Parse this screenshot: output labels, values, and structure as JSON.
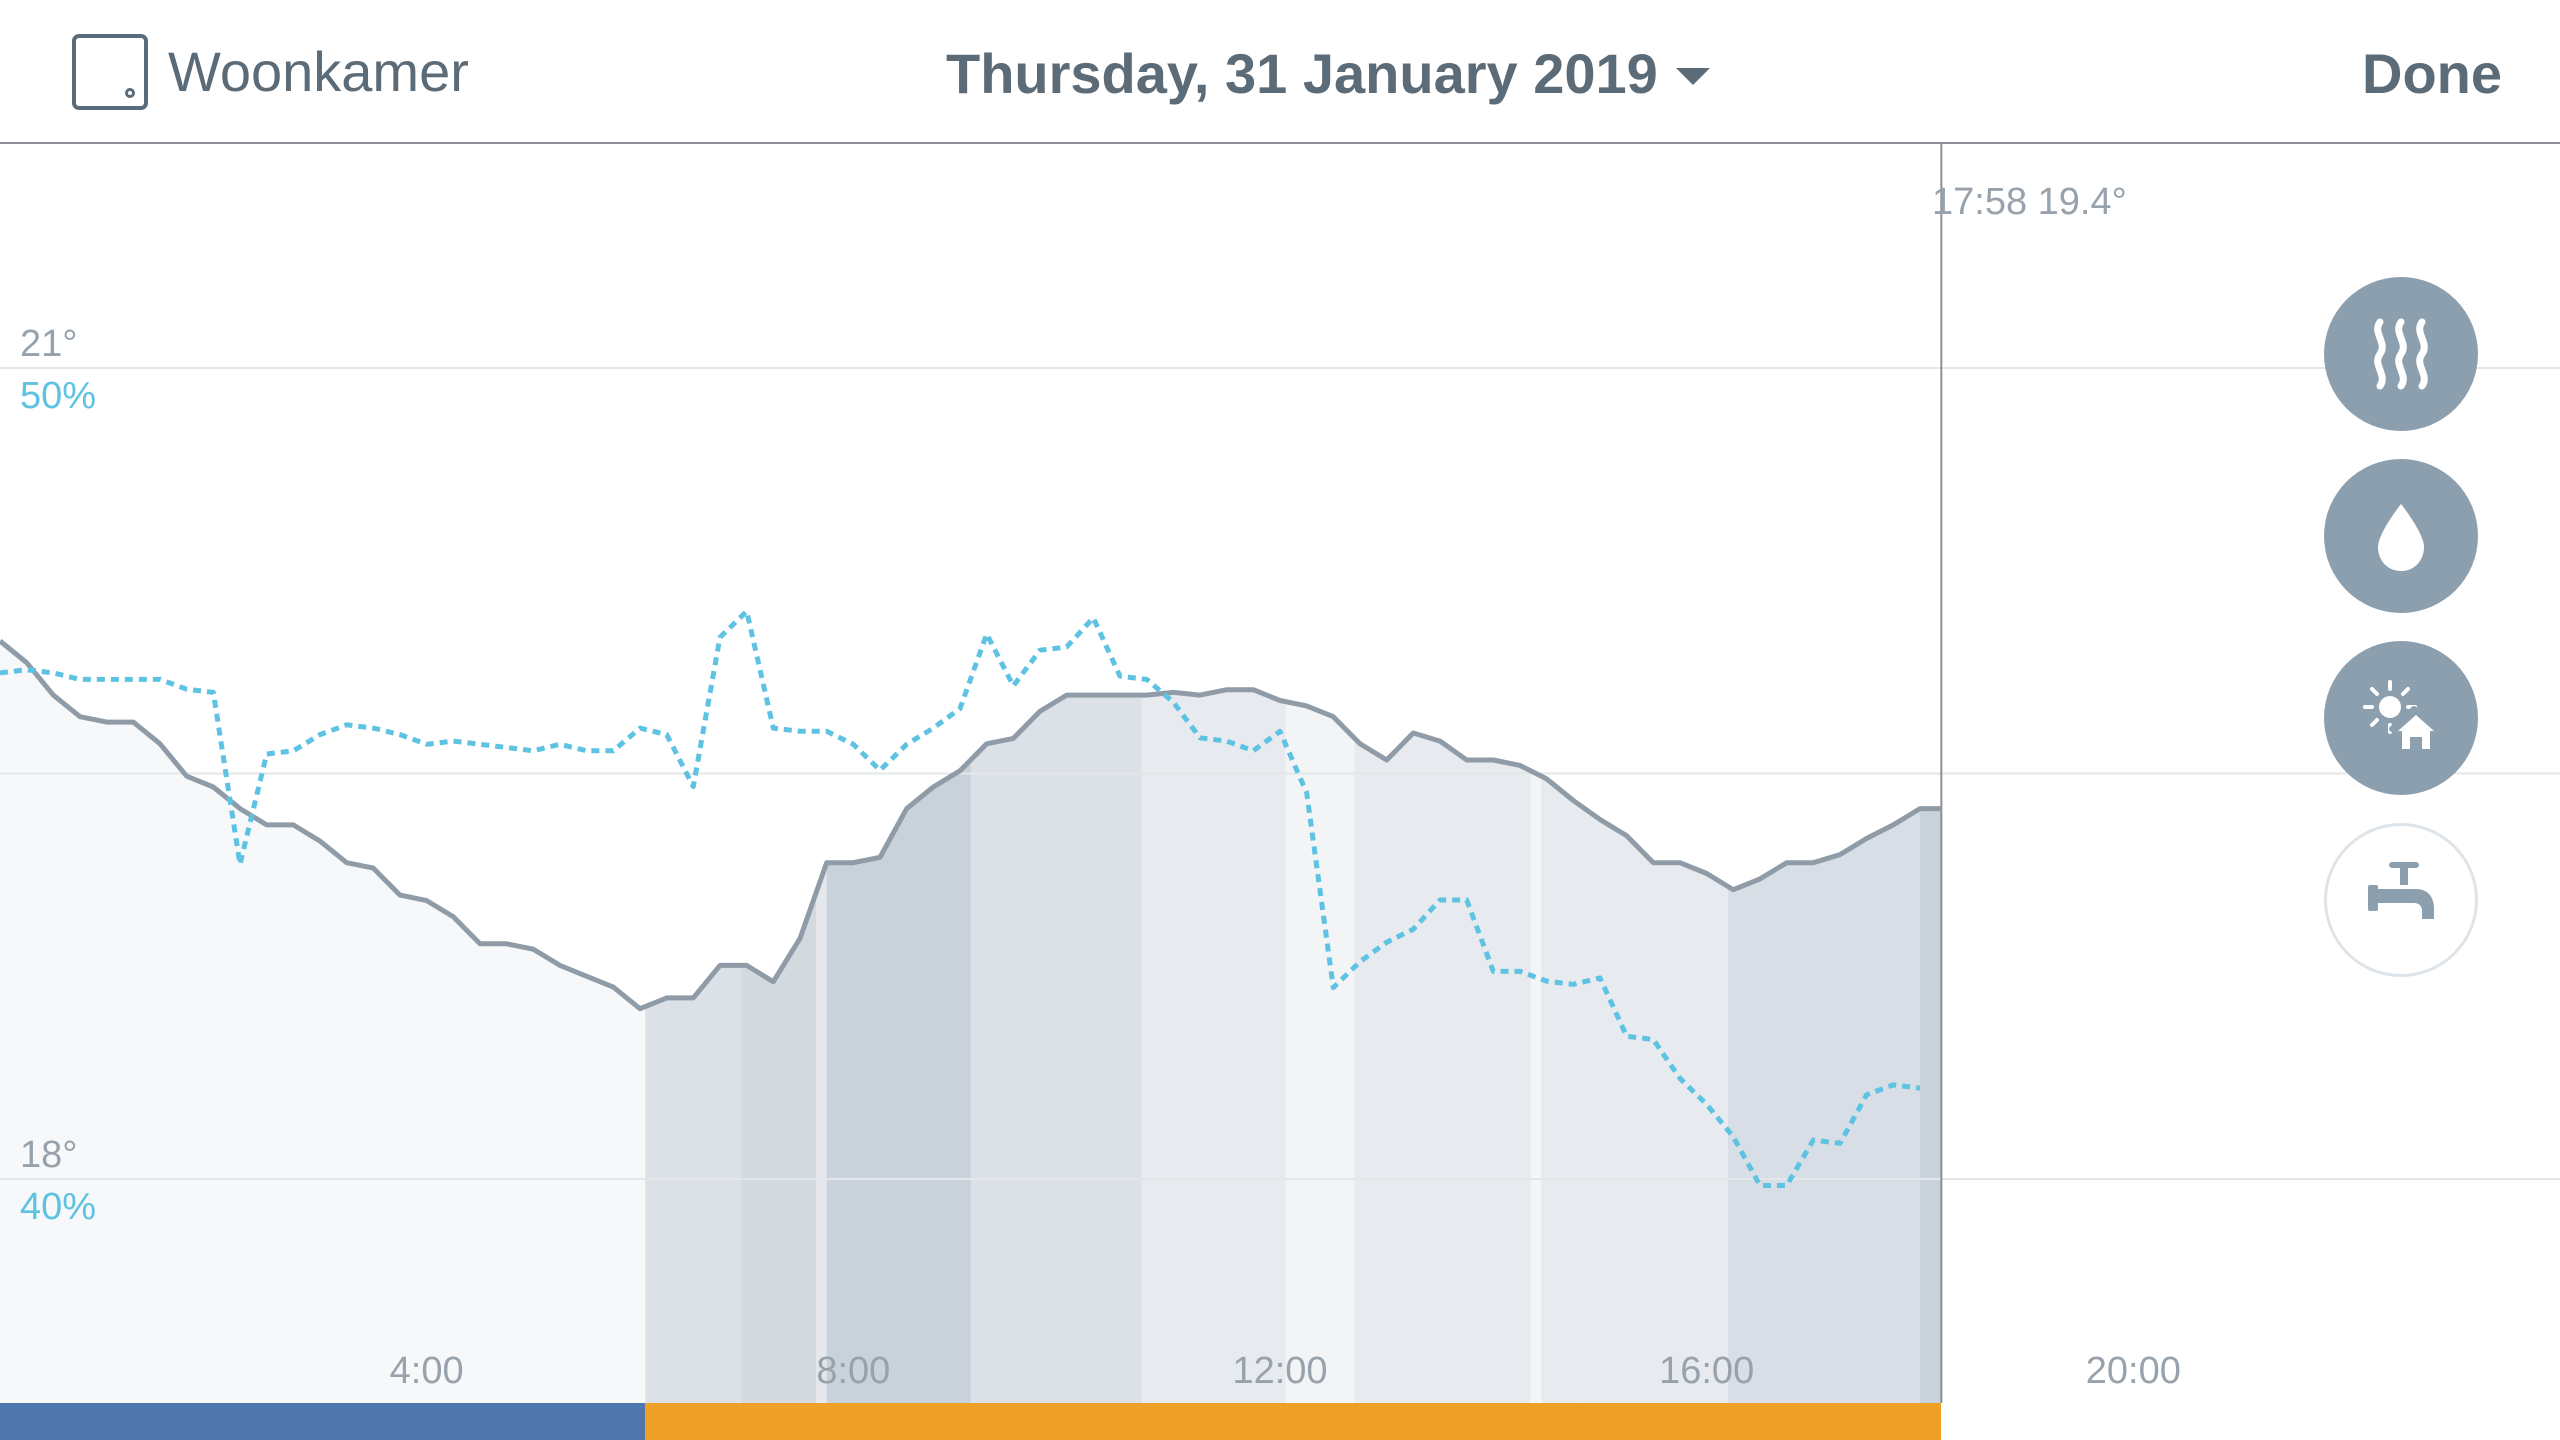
{
  "header": {
    "room_name": "Woonkamer",
    "date_label": "Thursday, 31 January 2019",
    "done_label": "Done"
  },
  "icons": {
    "room": "room-thermostat-icon",
    "date_dropdown": "caret-down-icon",
    "heating": "heating-waves-icon",
    "humidity": "water-drop-icon",
    "weather": "sun-house-icon",
    "hot_water": "water-tap-icon"
  },
  "colors": {
    "text": "#5c6b78",
    "temperature_line": "#8f9ca7",
    "humidity_line": "#5ec2e2",
    "home_mode": "#5077ad",
    "away_mode": "#efa027",
    "heating_shade": "#9fb0bf",
    "button_fill": "#8c9faf"
  },
  "readout": {
    "time": "17:58",
    "value": "19.4°"
  },
  "chart_data": {
    "type": "line",
    "x_unit": "hours",
    "xlim": [
      0,
      24
    ],
    "y_labels": {
      "temperature": [
        "21°",
        "18°"
      ],
      "humidity": [
        "50%",
        "40%"
      ]
    },
    "temperature_ylim": [
      17.0,
      22.0
    ],
    "humidity_ylim": [
      36.67,
      53.33
    ],
    "gridlines_temperature": [
      21,
      19.5,
      18
    ],
    "x_ticks": [
      {
        "value": 4,
        "label": "4:00"
      },
      {
        "value": 8,
        "label": "8:00"
      },
      {
        "value": 12,
        "label": "12:00"
      },
      {
        "value": 16,
        "label": "16:00"
      },
      {
        "value": 20,
        "label": "20:00"
      }
    ],
    "current_time": 18.2,
    "series": [
      {
        "points": [
          [
            0.0,
            19.99
          ],
          [
            0.25,
            19.91
          ],
          [
            0.5,
            19.79
          ],
          [
            0.75,
            19.71
          ],
          [
            1.0,
            19.69
          ],
          [
            1.25,
            19.69
          ],
          [
            1.5,
            19.61
          ],
          [
            1.75,
            19.49
          ],
          [
            2.0,
            19.45
          ],
          [
            2.25,
            19.37
          ],
          [
            2.5,
            19.31
          ],
          [
            2.75,
            19.31
          ],
          [
            3.0,
            19.25
          ],
          [
            3.25,
            19.17
          ],
          [
            3.5,
            19.15
          ],
          [
            3.75,
            19.05
          ],
          [
            4.0,
            19.03
          ],
          [
            4.25,
            18.97
          ],
          [
            4.5,
            18.87
          ],
          [
            4.75,
            18.87
          ],
          [
            5.0,
            18.85
          ],
          [
            5.25,
            18.79
          ],
          [
            5.5,
            18.75
          ],
          [
            5.75,
            18.71
          ],
          [
            6.0,
            18.63
          ],
          [
            6.25,
            18.67
          ],
          [
            6.5,
            18.67
          ],
          [
            6.75,
            18.79
          ],
          [
            7.0,
            18.79
          ],
          [
            7.25,
            18.73
          ],
          [
            7.5,
            18.89
          ],
          [
            7.75,
            19.17
          ],
          [
            8.0,
            19.17
          ],
          [
            8.25,
            19.19
          ],
          [
            8.5,
            19.37
          ],
          [
            8.75,
            19.45
          ],
          [
            9.0,
            19.51
          ],
          [
            9.25,
            19.61
          ],
          [
            9.5,
            19.63
          ],
          [
            9.75,
            19.73
          ],
          [
            10.0,
            19.79
          ],
          [
            10.25,
            19.79
          ],
          [
            10.5,
            19.79
          ],
          [
            10.75,
            19.79
          ],
          [
            11.0,
            19.8
          ],
          [
            11.25,
            19.79
          ],
          [
            11.5,
            19.81
          ],
          [
            11.75,
            19.81
          ],
          [
            12.0,
            19.77
          ],
          [
            12.25,
            19.75
          ],
          [
            12.5,
            19.71
          ],
          [
            12.75,
            19.61
          ],
          [
            13.0,
            19.55
          ],
          [
            13.25,
            19.65
          ],
          [
            13.5,
            19.62
          ],
          [
            13.75,
            19.55
          ],
          [
            14.0,
            19.55
          ],
          [
            14.25,
            19.53
          ],
          [
            14.5,
            19.48
          ],
          [
            14.75,
            19.4
          ],
          [
            15.0,
            19.33
          ],
          [
            15.25,
            19.27
          ],
          [
            15.5,
            19.17
          ],
          [
            15.75,
            19.17
          ],
          [
            16.0,
            19.13
          ],
          [
            16.25,
            19.07
          ],
          [
            16.5,
            19.11
          ],
          [
            16.75,
            19.17
          ],
          [
            17.0,
            19.17
          ],
          [
            17.25,
            19.2
          ],
          [
            17.5,
            19.26
          ],
          [
            17.75,
            19.31
          ],
          [
            18.0,
            19.37
          ],
          [
            18.2,
            19.37
          ]
        ]
      },
      {
        "points": [
          [
            0.0,
            46.24
          ],
          [
            0.25,
            46.28
          ],
          [
            0.5,
            46.24
          ],
          [
            0.75,
            46.16
          ],
          [
            1.0,
            46.16
          ],
          [
            1.25,
            46.16
          ],
          [
            1.5,
            46.16
          ],
          [
            1.75,
            46.04
          ],
          [
            2.0,
            46.0
          ],
          [
            2.25,
            43.88
          ],
          [
            2.5,
            45.24
          ],
          [
            2.75,
            45.28
          ],
          [
            3.0,
            45.48
          ],
          [
            3.25,
            45.6
          ],
          [
            3.5,
            45.56
          ],
          [
            3.75,
            45.48
          ],
          [
            4.0,
            45.36
          ],
          [
            4.25,
            45.4
          ],
          [
            4.5,
            45.36
          ],
          [
            4.75,
            45.32
          ],
          [
            5.0,
            45.28
          ],
          [
            5.25,
            45.36
          ],
          [
            5.5,
            45.28
          ],
          [
            5.75,
            45.28
          ],
          [
            6.0,
            45.56
          ],
          [
            6.25,
            45.48
          ],
          [
            6.5,
            44.84
          ],
          [
            6.75,
            46.68
          ],
          [
            7.0,
            47.0
          ],
          [
            7.25,
            45.56
          ],
          [
            7.5,
            45.52
          ],
          [
            7.75,
            45.52
          ],
          [
            8.0,
            45.36
          ],
          [
            8.25,
            45.04
          ],
          [
            8.5,
            45.36
          ],
          [
            8.75,
            45.56
          ],
          [
            9.0,
            45.8
          ],
          [
            9.25,
            46.72
          ],
          [
            9.5,
            46.08
          ],
          [
            9.75,
            46.52
          ],
          [
            10.0,
            46.56
          ],
          [
            10.25,
            46.92
          ],
          [
            10.5,
            46.2
          ],
          [
            10.75,
            46.16
          ],
          [
            11.0,
            45.88
          ],
          [
            11.25,
            45.44
          ],
          [
            11.5,
            45.4
          ],
          [
            11.75,
            45.28
          ],
          [
            12.0,
            45.52
          ],
          [
            12.25,
            44.76
          ],
          [
            12.5,
            42.36
          ],
          [
            12.75,
            42.68
          ],
          [
            13.0,
            42.92
          ],
          [
            13.25,
            43.08
          ],
          [
            13.5,
            43.44
          ],
          [
            13.75,
            43.44
          ],
          [
            14.0,
            42.56
          ],
          [
            14.25,
            42.56
          ],
          [
            14.5,
            42.44
          ],
          [
            14.75,
            42.4
          ],
          [
            15.0,
            42.48
          ],
          [
            15.25,
            41.76
          ],
          [
            15.5,
            41.72
          ],
          [
            15.75,
            41.24
          ],
          [
            16.0,
            40.92
          ],
          [
            16.25,
            40.52
          ],
          [
            16.5,
            39.92
          ],
          [
            16.75,
            39.92
          ],
          [
            17.0,
            40.48
          ],
          [
            17.25,
            40.44
          ],
          [
            17.5,
            41.04
          ],
          [
            17.75,
            41.16
          ],
          [
            18.0,
            41.12
          ]
        ]
      }
    ],
    "heating_intensity": [
      {
        "start": 6.05,
        "end": 6.95,
        "level": 0.45
      },
      {
        "start": 6.95,
        "end": 7.65,
        "level": 0.6
      },
      {
        "start": 7.65,
        "end": 7.75,
        "level": 0.3
      },
      {
        "start": 7.75,
        "end": 9.1,
        "level": 0.75
      },
      {
        "start": 9.1,
        "end": 10.7,
        "level": 0.45
      },
      {
        "start": 10.7,
        "end": 12.05,
        "level": 0.25
      },
      {
        "start": 12.05,
        "end": 12.7,
        "level": 0.08
      },
      {
        "start": 12.7,
        "end": 14.35,
        "level": 0.25
      },
      {
        "start": 14.35,
        "end": 14.45,
        "level": 0.05
      },
      {
        "start": 14.45,
        "end": 14.8,
        "level": 0.25
      },
      {
        "start": 14.8,
        "end": 16.2,
        "level": 0.25
      },
      {
        "start": 16.2,
        "end": 18.0,
        "level": 0.5
      },
      {
        "start": 18.0,
        "end": 18.2,
        "level": 0.75
      }
    ],
    "mode_segments": [
      {
        "start": 0,
        "end": 6.05,
        "color": "#5077ad"
      },
      {
        "start": 6.05,
        "end": 18.2,
        "color": "#efa027"
      }
    ]
  }
}
